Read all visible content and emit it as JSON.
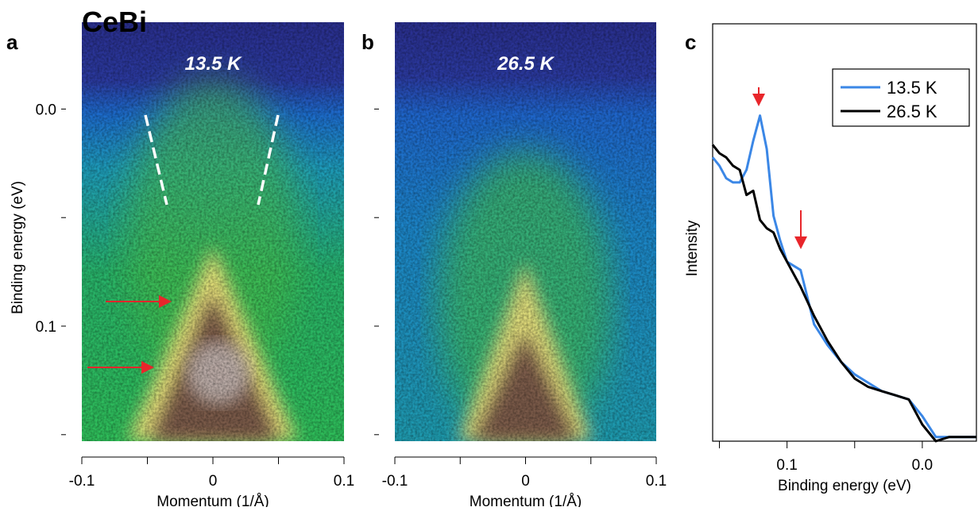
{
  "figure_title": "CeBi",
  "chart_data": [
    {
      "type": "image",
      "panel": "a",
      "title": "13.5 K",
      "xlabel": "Momentum (1/Å)",
      "ylabel": "Binding energy (eV)",
      "xlim": [
        -0.1,
        0.1
      ],
      "xticks": [
        -0.1,
        0,
        0.1
      ],
      "xminor": [
        -0.05,
        0.05
      ],
      "ylim": [
        -0.04,
        0.153
      ],
      "yticks": [
        {
          "value": 0,
          "label": "0.0"
        },
        0.1
      ],
      "yminor": [
        0.05,
        0.15
      ]
    },
    {
      "type": "image",
      "panel": "b",
      "title": "26.5 K",
      "xlabel": "Momentum (1/Å)",
      "xlim": [
        -0.1,
        0.1
      ],
      "xticks": [
        -0.1,
        0,
        0.1
      ],
      "xminor": [
        -0.05,
        0.05
      ],
      "ylim": [
        -0.04,
        0.153
      ],
      "yminor": [
        0,
        0.05,
        0.1,
        0.15
      ]
    },
    {
      "type": "line",
      "panel": "c",
      "xlabel": "Binding energy (eV)",
      "ylabel": "Intensity",
      "xlim": [
        0.155,
        -0.04
      ],
      "xticks": [
        0.1,
        {
          "value": 0,
          "label": "0.0"
        }
      ],
      "xminor": [
        0.15,
        0.05
      ],
      "ylim": [
        0,
        1
      ],
      "x": [
        0.155,
        0.15,
        0.145,
        0.14,
        0.135,
        0.13,
        0.125,
        0.12,
        0.115,
        0.11,
        0.105,
        0.1,
        0.09,
        0.08,
        0.07,
        0.06,
        0.05,
        0.04,
        0.03,
        0.02,
        0.01,
        0,
        -0.01,
        -0.02,
        -0.04
      ],
      "series": [
        {
          "name": "13.5 K",
          "color": "#3b87e6",
          "values": [
            0.68,
            0.66,
            0.63,
            0.62,
            0.62,
            0.65,
            0.72,
            0.78,
            0.7,
            0.54,
            0.48,
            0.43,
            0.41,
            0.28,
            0.23,
            0.19,
            0.16,
            0.14,
            0.12,
            0.11,
            0.1,
            0.06,
            0.01,
            0.01,
            0.01
          ]
        },
        {
          "name": "26.5 K",
          "color": "#000000",
          "values": [
            0.71,
            0.69,
            0.68,
            0.66,
            0.65,
            0.59,
            0.6,
            0.53,
            0.51,
            0.5,
            0.46,
            0.43,
            0.37,
            0.3,
            0.24,
            0.19,
            0.15,
            0.13,
            0.12,
            0.11,
            0.1,
            0.04,
            0,
            0.01,
            0.01
          ]
        }
      ]
    }
  ]
}
